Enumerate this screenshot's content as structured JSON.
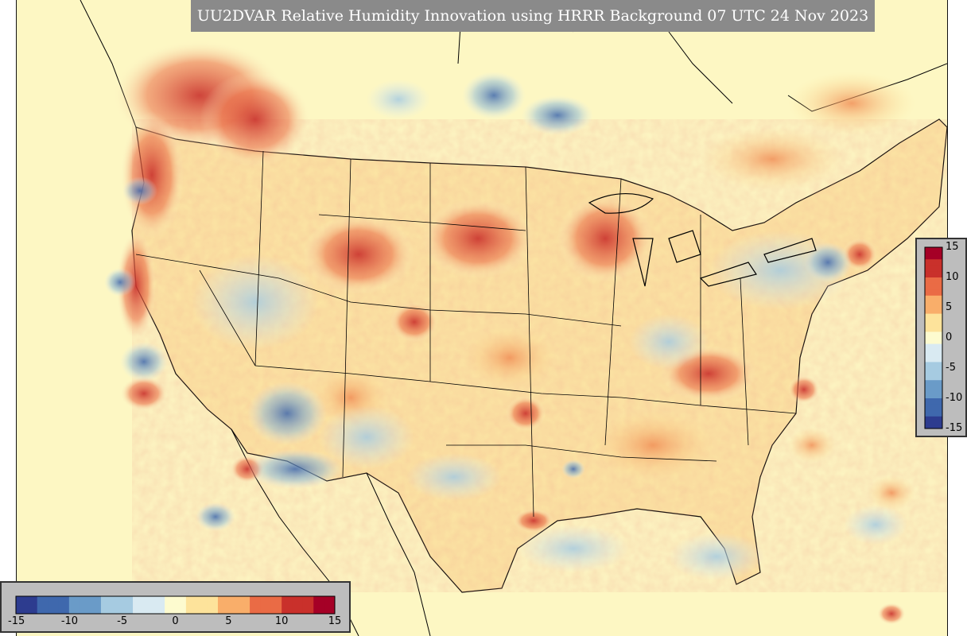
{
  "map": {
    "title": "UU2DVAR Relative Humidity Innovation using HRRR Background 07 UTC 24 Nov 2023",
    "variable": "Relative Humidity Innovation",
    "colorbar": {
      "min": -15,
      "max": 15,
      "colors": [
        "#2d3c8f",
        "#3f68ad",
        "#6a9bc8",
        "#a6cbe1",
        "#d9eaf2",
        "#fdfbcf",
        "#fde39b",
        "#f9ae6a",
        "#ea6b45",
        "#c9302b",
        "#a50026"
      ],
      "right_ticks": [
        "15",
        "10",
        "5",
        "0",
        "-5",
        "-10",
        "-15"
      ],
      "bottom_ticks": [
        "-15",
        "-10",
        "-5",
        "0",
        "5",
        "10",
        "15"
      ]
    }
  }
}
